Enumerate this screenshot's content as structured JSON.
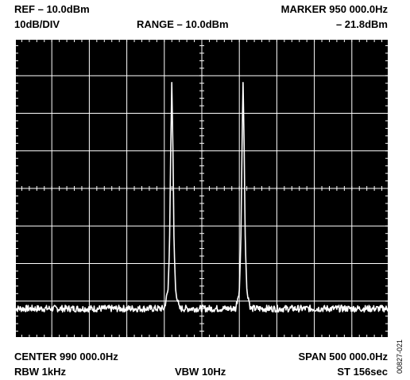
{
  "header": {
    "ref": "REF – 10.0dBm",
    "scale": "10dB/DIV",
    "range": "RANGE – 10.0dBm",
    "marker_label": "MARKER 950 000.0Hz",
    "marker_value": "– 21.8dBm"
  },
  "footer": {
    "center": "CENTER 990 000.0Hz",
    "rbw": "RBW 1kHz",
    "vbw": "VBW 10Hz",
    "span": "SPAN 500 000.0Hz",
    "sweep": "ST 156sec"
  },
  "figure_id": "00827-021",
  "colors": {
    "screen": "#000000",
    "trace": "#ffffff",
    "grid": "#ffffff"
  },
  "chart_data": {
    "type": "line",
    "ref_level_dbm": -10.0,
    "db_per_div": 10,
    "divisions": {
      "x": 10,
      "y": 8
    },
    "center_hz": 990000,
    "span_hz": 500000,
    "xlim": [
      740000,
      1240000
    ],
    "ylim": [
      -90,
      -10
    ],
    "grid": true,
    "noise_floor_dbm": -82,
    "marker": {
      "x_hz": 950000,
      "y_dbm": -21.8
    },
    "series": [
      {
        "x": [
          740000,
          900000,
          940000,
          945000,
          947000,
          948500,
          950000,
          951500,
          953000,
          955000,
          960000,
          1000000,
          1035000,
          1040000,
          1042000,
          1043500,
          1045000,
          1046500,
          1048000,
          1050000,
          1055000,
          1240000
        ],
        "y": [
          -82,
          -82,
          -82,
          -77,
          -65,
          -40,
          -21.8,
          -40,
          -65,
          -77,
          -82,
          -82,
          -82,
          -77,
          -65,
          -40,
          -21.8,
          -40,
          -65,
          -77,
          -82,
          -82
        ]
      }
    ]
  }
}
